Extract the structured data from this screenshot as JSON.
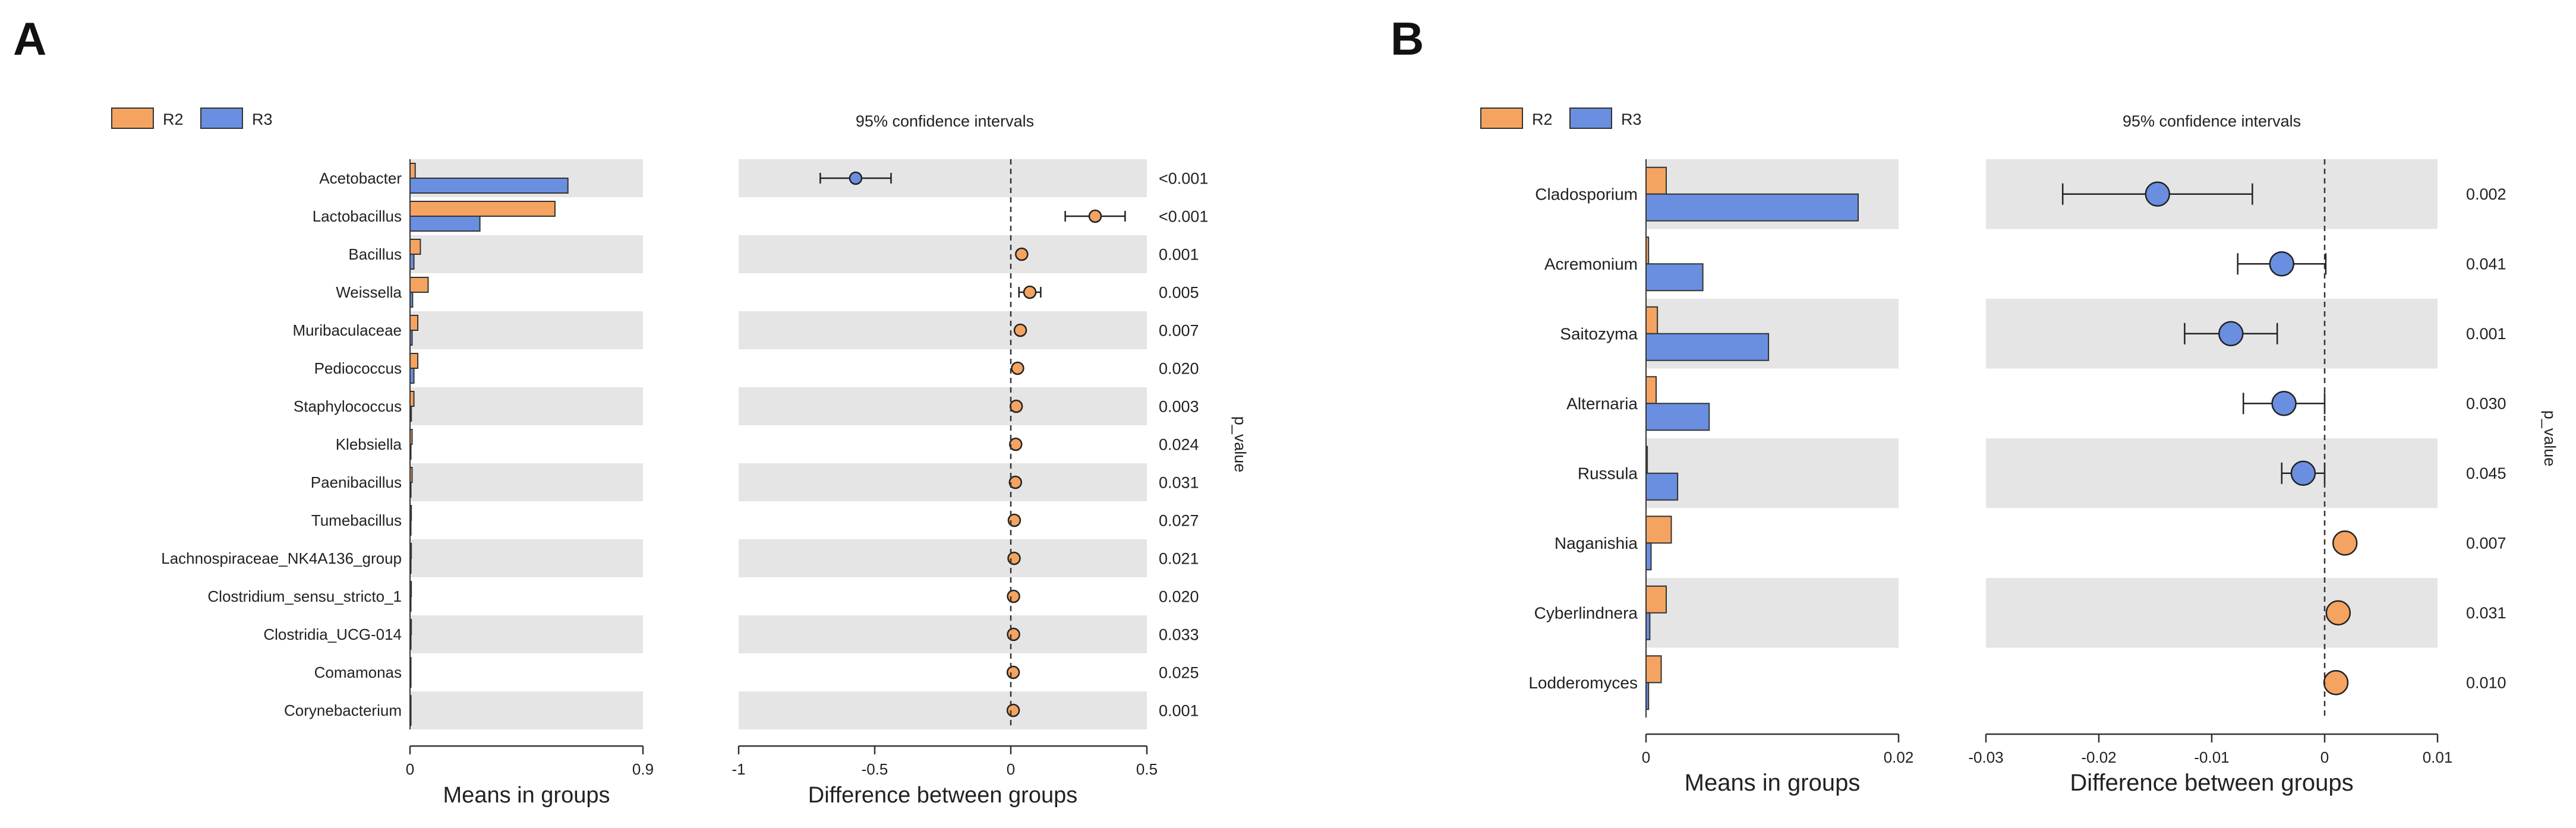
{
  "colors": {
    "R2": "#F4A460",
    "R3": "#6A8FE0",
    "stripe": "#E5E5E5",
    "edge": "#333333",
    "text": "#222222"
  },
  "chart_data": [
    {
      "panel_label": "A",
      "type": "bar",
      "legend": [
        {
          "name": "R2"
        },
        {
          "name": "R3"
        }
      ],
      "ci_title": "95% confidence intervals",
      "xlabel_means": "Means in groups",
      "xlabel_diff": "Difference between groups",
      "p_axis_label": "p_value",
      "means_axis": {
        "lim": [
          0,
          0.9
        ],
        "ticks": [
          0,
          0.9
        ],
        "tick_labels": [
          "0",
          "0.9"
        ]
      },
      "diff_axis": {
        "lim": [
          -1,
          0.5
        ],
        "ticks": [
          -1,
          -0.5,
          0,
          0.5
        ],
        "tick_labels": [
          "-1",
          "-0.5",
          "0",
          "0.5"
        ]
      },
      "categories": [
        "Acetobacter",
        "Lactobacillus",
        "Bacillus",
        "Weissella",
        "Muribaculaceae",
        "Pediococcus",
        "Staphylococcus",
        "Klebsiella",
        "Paenibacillus",
        "Tumebacillus",
        "Lachnospiraceae_NK4A136_group",
        "Clostridium_sensu_stricto_1",
        "Clostridia_UCG-014",
        "Comamonas",
        "Corynebacterium"
      ],
      "series": [
        {
          "name": "R2",
          "values": [
            0.02,
            0.56,
            0.04,
            0.07,
            0.03,
            0.03,
            0.015,
            0.008,
            0.008,
            0.005,
            0.005,
            0.005,
            0.005,
            0.003,
            0.003
          ]
        },
        {
          "name": "R3",
          "values": [
            0.61,
            0.27,
            0.015,
            0.01,
            0.008,
            0.015,
            0.005,
            0.003,
            0.003,
            0.002,
            0.002,
            0.002,
            0.002,
            0.001,
            0.001
          ]
        }
      ],
      "diff": [
        -0.57,
        0.31,
        0.04,
        0.07,
        0.035,
        0.025,
        0.02,
        0.018,
        0.017,
        0.013,
        0.012,
        0.01,
        0.01,
        0.009,
        0.009
      ],
      "ci_low": [
        -0.7,
        0.2,
        0.03,
        0.03,
        0.025,
        0.015,
        0.01,
        0.008,
        0.008,
        0.005,
        0.005,
        0.004,
        0.003,
        0.003,
        0.003
      ],
      "ci_high": [
        -0.44,
        0.42,
        0.05,
        0.11,
        0.045,
        0.035,
        0.03,
        0.028,
        0.026,
        0.021,
        0.019,
        0.016,
        0.017,
        0.015,
        0.015
      ],
      "p_values": [
        "<0.001",
        "<0.001",
        "0.001",
        "0.005",
        "0.007",
        "0.020",
        "0.003",
        "0.024",
        "0.031",
        "0.027",
        "0.021",
        "0.020",
        "0.033",
        "0.025",
        "0.001"
      ]
    },
    {
      "panel_label": "B",
      "type": "bar",
      "legend": [
        {
          "name": "R2"
        },
        {
          "name": "R3"
        }
      ],
      "ci_title": "95% confidence intervals",
      "xlabel_means": "Means in groups",
      "xlabel_diff": "Difference between groups",
      "p_axis_label": "p_value",
      "means_axis": {
        "lim": [
          0,
          0.02
        ],
        "ticks": [
          0,
          0.02
        ],
        "tick_labels": [
          "0",
          "0.02"
        ]
      },
      "diff_axis": {
        "lim": [
          -0.03,
          0.01
        ],
        "ticks": [
          -0.03,
          -0.02,
          -0.01,
          0,
          0.01
        ],
        "tick_labels": [
          "-0.03",
          "-0.02",
          "-0.01",
          "0",
          "0.01"
        ]
      },
      "categories": [
        "Cladosporium",
        "Acremonium",
        "Saitozyma",
        "Alternaria",
        "Russula",
        "Naganishia",
        "Cyberlindnera",
        "Lodderomyces"
      ],
      "series": [
        {
          "name": "R2",
          "values": [
            0.0016,
            0.0002,
            0.0009,
            0.0008,
            0.0001,
            0.002,
            0.0016,
            0.0012
          ]
        },
        {
          "name": "R3",
          "values": [
            0.0168,
            0.0045,
            0.0097,
            0.005,
            0.0025,
            0.0004,
            0.0003,
            0.0002
          ]
        }
      ],
      "diff": [
        -0.0148,
        -0.0038,
        -0.0083,
        -0.0036,
        -0.0019,
        0.0018,
        0.0012,
        0.001
      ],
      "ci_low": [
        -0.0232,
        -0.0077,
        -0.0124,
        -0.0072,
        -0.0038,
        0.0013,
        0.0008,
        0.0006
      ],
      "ci_high": [
        -0.0064,
        0.0001,
        -0.0042,
        0.0,
        0.0,
        0.0023,
        0.0016,
        0.0014
      ],
      "p_values": [
        "0.002",
        "0.041",
        "0.001",
        "0.030",
        "0.045",
        "0.007",
        "0.031",
        "0.010"
      ]
    }
  ]
}
